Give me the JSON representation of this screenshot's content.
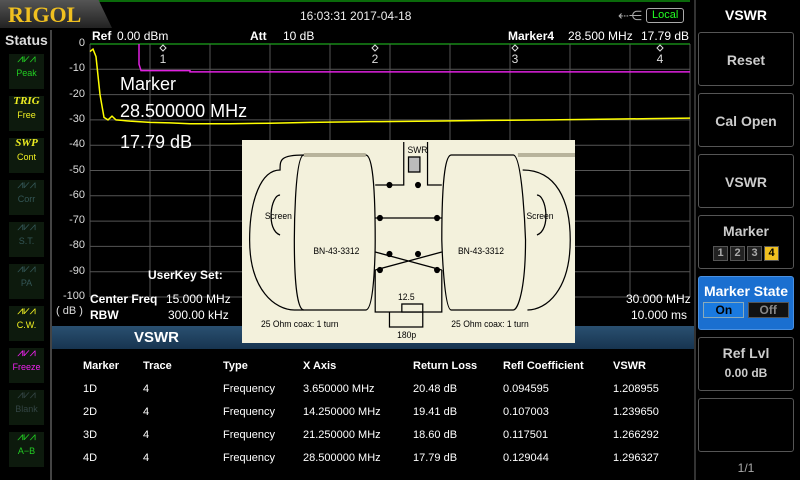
{
  "header": {
    "logo": "RIGOL",
    "datetime": "16:03:31 2017-04-18",
    "usb_icon": "usb-icon",
    "remote": "Local"
  },
  "status": {
    "title": "Status",
    "items": [
      {
        "icon": "peak-icon",
        "top": "",
        "label": "Peak",
        "color": "#2c2"
      },
      {
        "icon": "trig-icon",
        "top": "TRIG",
        "label": "Free",
        "color": "#ee2"
      },
      {
        "icon": "sweep-icon",
        "top": "SWP",
        "label": "Cont",
        "color": "#ee2"
      },
      {
        "icon": "corr-icon",
        "top": "",
        "label": "Corr",
        "color": "#355"
      },
      {
        "icon": "st-icon",
        "top": "",
        "label": "S.T.",
        "color": "#355"
      },
      {
        "icon": "pa-icon",
        "top": "",
        "label": "PA",
        "color": "#355"
      },
      {
        "icon": "cw-icon",
        "top": "",
        "label": "C.W.",
        "color": "#ee2"
      },
      {
        "icon": "freeze-icon",
        "top": "",
        "label": "Freeze",
        "color": "#e2e"
      },
      {
        "icon": "blank-icon",
        "top": "",
        "label": "Blank",
        "color": "#344"
      },
      {
        "icon": "a-minus-b-icon",
        "top": "",
        "label": "A−B",
        "color": "#2c2"
      }
    ]
  },
  "display": {
    "ref_label": "Ref",
    "ref_value": "0.00 dBm",
    "att_label": "Att",
    "att_value": "10 dB",
    "marker_readout_label": "Marker4",
    "marker_readout_freq": "28.500 MHz",
    "marker_readout_value": "17.79 dB",
    "big_marker_title": "Marker",
    "big_marker_freq": "28.500000 MHz",
    "big_marker_value": "17.79 dB",
    "unit": "( dB )",
    "userkey": "UserKey Set:",
    "center_label": "Center Freq",
    "center_value": "15.000 MHz",
    "span_value": "30.000 MHz",
    "rbw_label": "RBW",
    "rbw_value": "300.00 kHz",
    "sweep_value": "10.000 ms"
  },
  "chart_data": {
    "type": "line",
    "xlim": [
      0,
      30
    ],
    "ylim": [
      -100,
      0
    ],
    "grid": true,
    "y_ticks": [
      "0",
      "-10",
      "-20",
      "-30",
      "-40",
      "-50",
      "-60",
      "-70",
      "-80",
      "-90",
      "-100"
    ],
    "trace": {
      "color": "#ffff00",
      "x": [
        0,
        0.15,
        0.3,
        0.5,
        0.7,
        0.9,
        1.1,
        1.3,
        1.6,
        2,
        3,
        4,
        5,
        7,
        9,
        11,
        14,
        17,
        20,
        23,
        26,
        28,
        30
      ],
      "y": [
        -3,
        -2,
        -5,
        -20,
        -29,
        -30,
        -28.5,
        -30,
        -30.2,
        -30.5,
        -31,
        -31.2,
        -31.5,
        -31.5,
        -31.3,
        -31,
        -30.7,
        -30.5,
        -30.2,
        -30,
        -29.7,
        -29.5,
        -29.3
      ]
    },
    "limit_line": {
      "color": "#e020e0",
      "x": [
        2.45,
        2.45,
        2.55,
        5,
        5,
        30
      ],
      "y": [
        0,
        -8,
        -10.5,
        -10.5,
        -11,
        -11
      ]
    },
    "markers": [
      {
        "label": "1",
        "x": 3.65
      },
      {
        "label": "2",
        "x": 14.25
      },
      {
        "label": "3",
        "x": 21.25
      },
      {
        "label": "4",
        "x": 28.5
      }
    ]
  },
  "diagram": {
    "swr": "SWR",
    "screen": "Screen",
    "core": "BN-43-3312",
    "coax": "25 Ohm coax: 1 turn",
    "resistor": "12.5",
    "capacitor": "180p"
  },
  "table": {
    "title": "VSWR",
    "headers": [
      "Marker",
      "Trace",
      "Type",
      "X Axis",
      "Return Loss",
      "Refl Coefficient",
      "VSWR"
    ],
    "rows": [
      [
        "1D",
        "4",
        "Frequency",
        "3.650000 MHz",
        "20.48 dB",
        "0.094595",
        "1.208955"
      ],
      [
        "2D",
        "4",
        "Frequency",
        "14.250000 MHz",
        "19.41 dB",
        "0.107003",
        "1.239650"
      ],
      [
        "3D",
        "4",
        "Frequency",
        "21.250000 MHz",
        "18.60 dB",
        "0.117501",
        "1.266292"
      ],
      [
        "4D",
        "4",
        "Frequency",
        "28.500000 MHz",
        "17.79 dB",
        "0.129044",
        "1.296327"
      ]
    ]
  },
  "menu": {
    "title": "VSWR",
    "reset": "Reset",
    "cal_open": "Cal Open",
    "vswr": "VSWR",
    "marker": "Marker",
    "markers": [
      "1",
      "2",
      "3",
      "4"
    ],
    "active_marker": "4",
    "marker_state": "Marker State",
    "on": "On",
    "off": "Off",
    "ref_lvl": "Ref Lvl",
    "ref_lvl_value": "0.00 dB",
    "page": "1/1",
    "accent": "#1a6fd0"
  }
}
